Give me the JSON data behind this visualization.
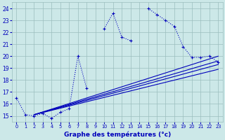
{
  "xlabel": "Graphe des températures (°c)",
  "xlim": [
    -0.5,
    23.5
  ],
  "ylim": [
    14.5,
    24.5
  ],
  "yticks": [
    15,
    16,
    17,
    18,
    19,
    20,
    21,
    22,
    23,
    24
  ],
  "xticks": [
    0,
    1,
    2,
    3,
    4,
    5,
    6,
    7,
    8,
    9,
    10,
    11,
    12,
    13,
    14,
    15,
    16,
    17,
    18,
    19,
    20,
    21,
    22,
    23
  ],
  "background_color": "#cce8e8",
  "grid_color": "#9bbdbd",
  "line_color": "#0000bb",
  "main_series": {
    "x": [
      0,
      1,
      2,
      3,
      4,
      5,
      6,
      7,
      8,
      10,
      11,
      12,
      13,
      15,
      16,
      17,
      18,
      19,
      20,
      21,
      22,
      23
    ],
    "y": [
      16.5,
      15.1,
      15.0,
      15.2,
      14.8,
      15.3,
      15.6,
      20.0,
      17.3,
      22.3,
      23.6,
      21.6,
      21.3,
      24.0,
      23.5,
      23.0,
      22.5,
      20.8,
      19.9,
      19.9,
      20.0,
      19.5
    ],
    "breaks": [
      8,
      13
    ]
  },
  "trend_lines": [
    {
      "x": [
        2,
        23
      ],
      "y": [
        15.1,
        20.0
      ]
    },
    {
      "x": [
        2,
        23
      ],
      "y": [
        15.1,
        19.6
      ]
    },
    {
      "x": [
        2,
        23
      ],
      "y": [
        15.1,
        19.3
      ]
    },
    {
      "x": [
        2,
        23
      ],
      "y": [
        15.1,
        18.9
      ]
    }
  ]
}
